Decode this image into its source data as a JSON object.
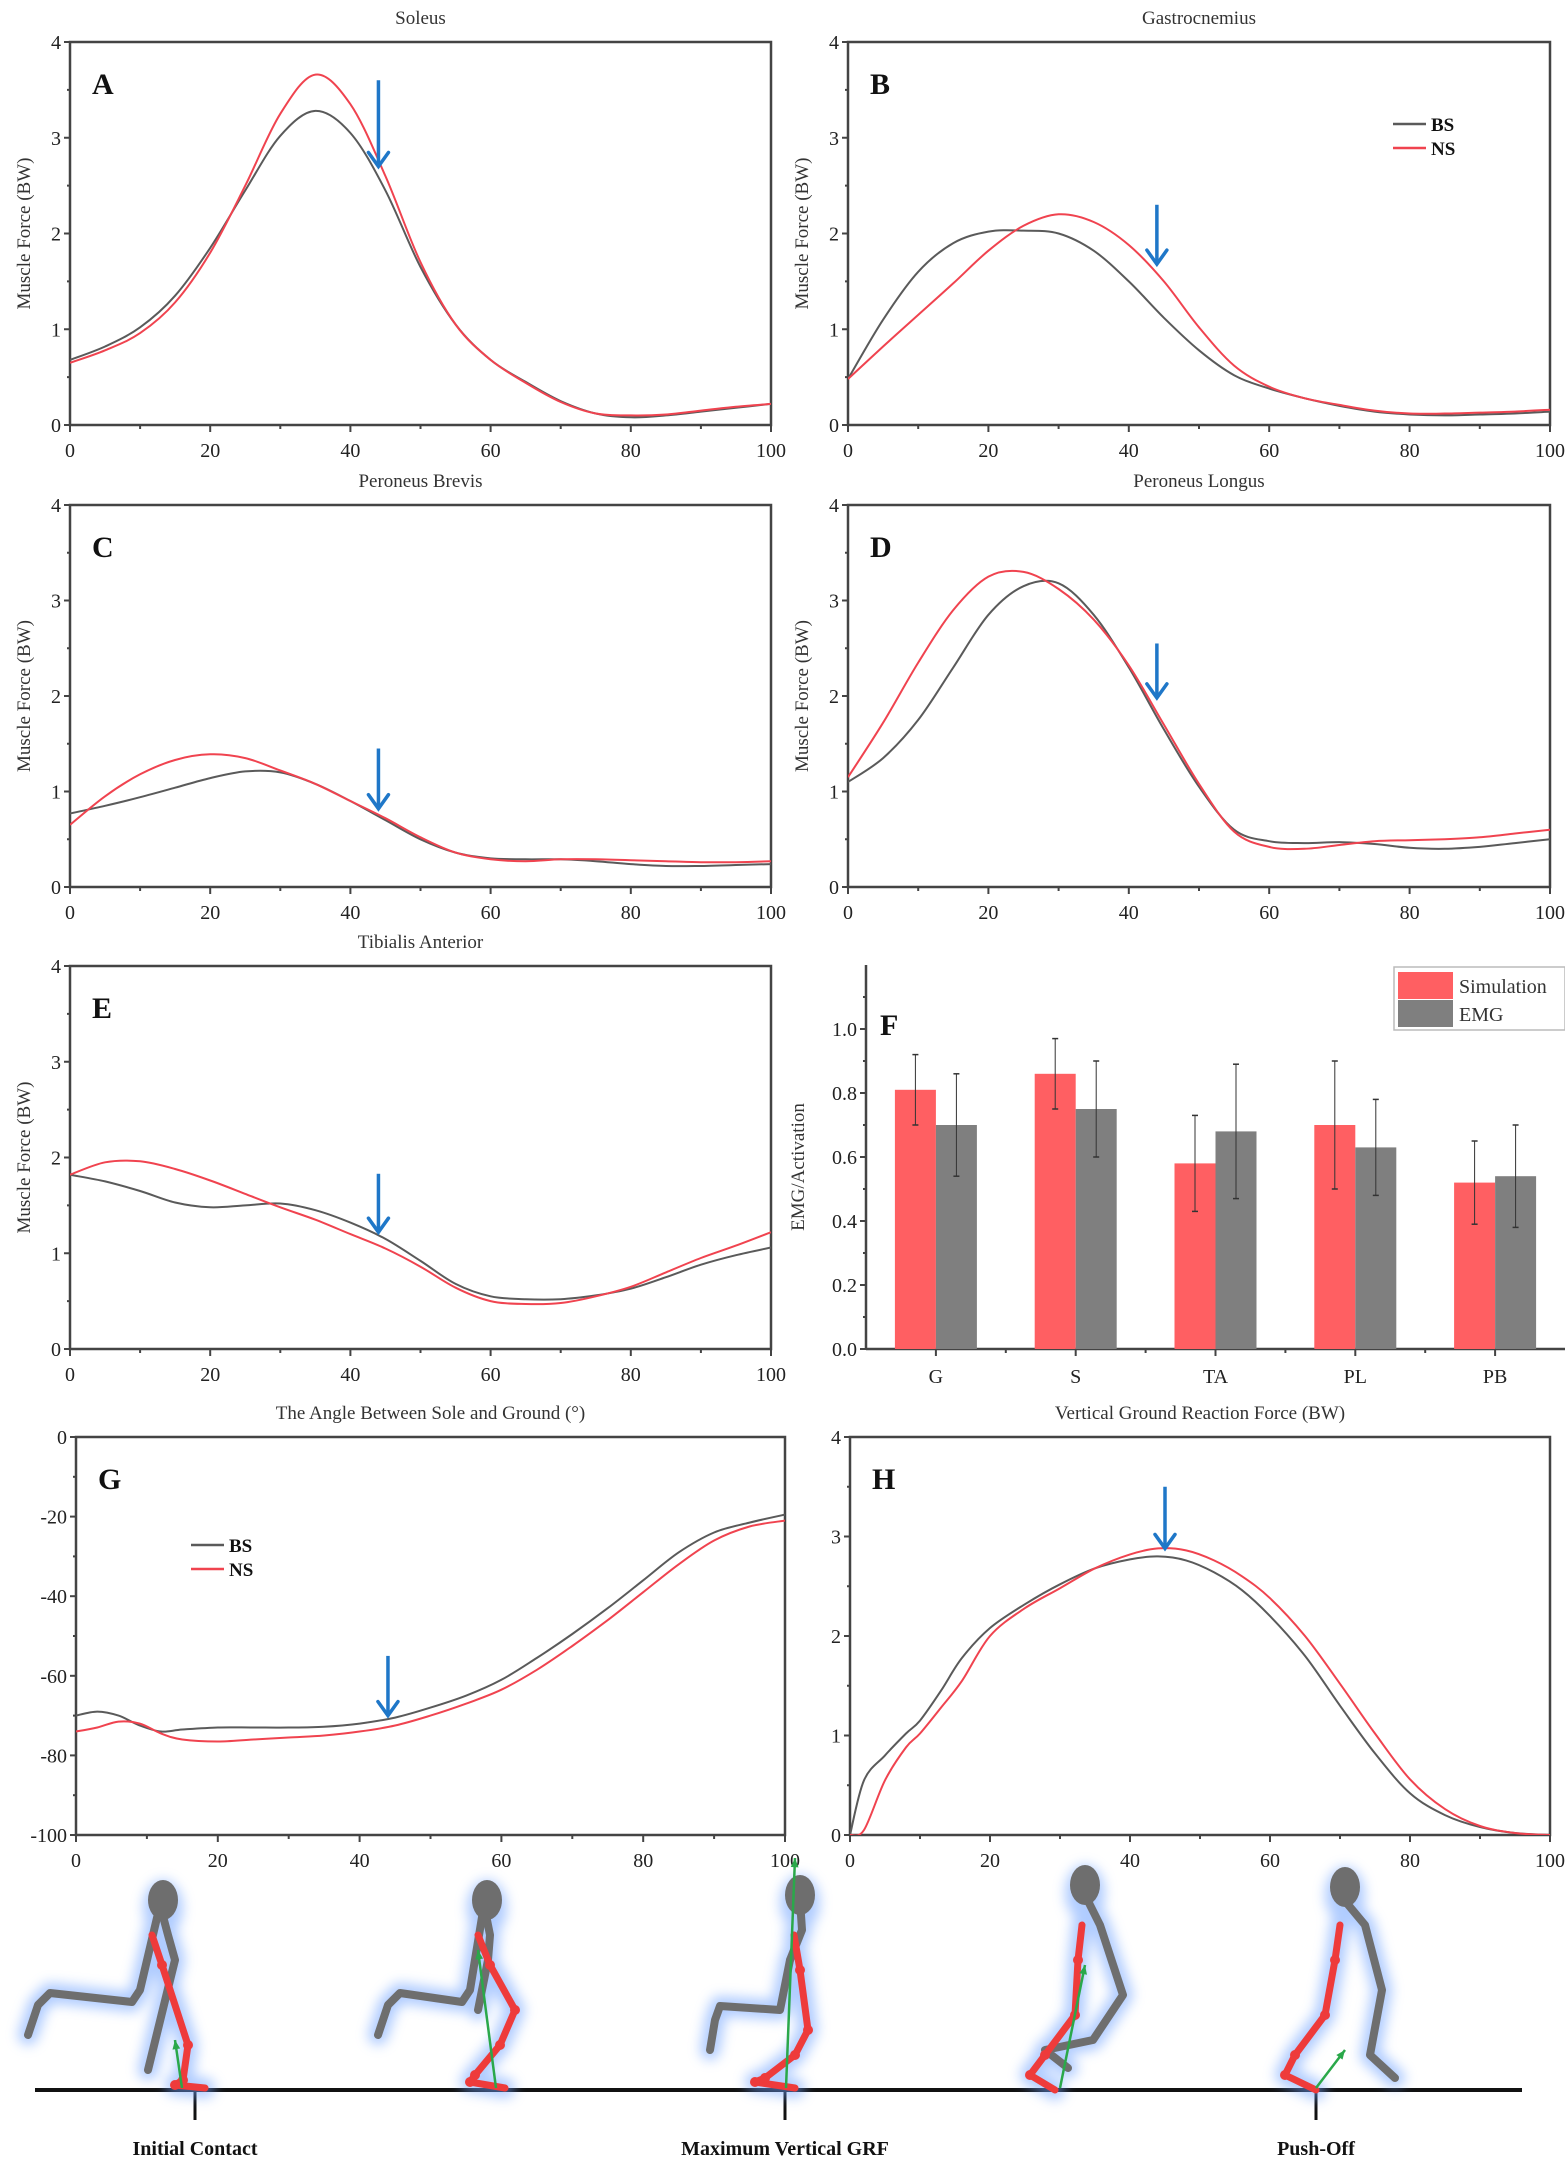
{
  "colors": {
    "BS": "#5a5a5a",
    "NS": "#f0434f",
    "arrow": "#1f77c8",
    "simulation": "#ff5f62",
    "emg": "#7f7f7f",
    "axis": "#444444",
    "skeleton_grey": "#6e6e6e",
    "skeleton_red": "#ee3b3b",
    "grf_vector": "#2aa84a",
    "glow": "#6fa3ff"
  },
  "legend": {
    "series": [
      "BS",
      "NS"
    ]
  },
  "phases": {
    "labels": [
      "Initial Contact",
      "Maximum Vertical GRF",
      "Push-Off"
    ]
  },
  "chart_data": [
    {
      "id": "A",
      "type": "line",
      "title": "Soleus",
      "letter": "A",
      "xlabel": "",
      "ylabel": "Muscle Force (BW)",
      "xlim": [
        0,
        100
      ],
      "ylim": [
        0,
        4
      ],
      "xticks": [
        0,
        20,
        40,
        60,
        80,
        100
      ],
      "yticks": [
        0,
        1,
        2,
        3,
        4
      ],
      "arrow_x": 44,
      "arrow_y_top": 3.6,
      "arrow_y_tip": 2.7,
      "series": [
        {
          "name": "BS",
          "x": [
            0,
            5,
            10,
            15,
            20,
            25,
            30,
            35,
            40,
            45,
            50,
            55,
            60,
            65,
            70,
            75,
            80,
            85,
            90,
            95,
            100
          ],
          "y": [
            0.68,
            0.82,
            1.02,
            1.35,
            1.85,
            2.45,
            3.02,
            3.28,
            3.05,
            2.45,
            1.65,
            1.05,
            0.68,
            0.45,
            0.25,
            0.12,
            0.08,
            0.1,
            0.14,
            0.18,
            0.22
          ]
        },
        {
          "name": "NS",
          "x": [
            0,
            5,
            10,
            15,
            20,
            25,
            30,
            35,
            40,
            45,
            50,
            55,
            60,
            65,
            70,
            75,
            80,
            85,
            90,
            95,
            100
          ],
          "y": [
            0.65,
            0.78,
            0.96,
            1.28,
            1.8,
            2.5,
            3.25,
            3.66,
            3.35,
            2.6,
            1.7,
            1.05,
            0.68,
            0.44,
            0.24,
            0.12,
            0.1,
            0.11,
            0.15,
            0.19,
            0.22
          ]
        }
      ]
    },
    {
      "id": "B",
      "type": "line",
      "title": "Gastrocnemius",
      "letter": "B",
      "xlabel": "",
      "ylabel": "Muscle Force (BW)",
      "xlim": [
        0,
        100
      ],
      "ylim": [
        0,
        4
      ],
      "xticks": [
        0,
        20,
        40,
        60,
        80,
        100
      ],
      "yticks": [
        0,
        1,
        2,
        3,
        4
      ],
      "legend": true,
      "arrow_x": 44,
      "arrow_y_top": 2.3,
      "arrow_y_tip": 1.68,
      "series": [
        {
          "name": "BS",
          "x": [
            0,
            5,
            10,
            15,
            20,
            25,
            30,
            35,
            40,
            45,
            50,
            55,
            60,
            65,
            70,
            75,
            80,
            85,
            90,
            95,
            100
          ],
          "y": [
            0.48,
            1.1,
            1.6,
            1.9,
            2.02,
            2.03,
            2.0,
            1.82,
            1.5,
            1.12,
            0.78,
            0.52,
            0.38,
            0.28,
            0.2,
            0.14,
            0.11,
            0.1,
            0.11,
            0.12,
            0.14
          ]
        },
        {
          "name": "NS",
          "x": [
            0,
            5,
            10,
            15,
            20,
            25,
            30,
            35,
            40,
            45,
            50,
            55,
            60,
            65,
            70,
            75,
            80,
            85,
            90,
            95,
            100
          ],
          "y": [
            0.48,
            0.82,
            1.15,
            1.48,
            1.82,
            2.08,
            2.2,
            2.12,
            1.88,
            1.5,
            1.02,
            0.62,
            0.4,
            0.28,
            0.21,
            0.15,
            0.12,
            0.12,
            0.13,
            0.14,
            0.16
          ]
        }
      ]
    },
    {
      "id": "C",
      "type": "line",
      "title": "Peroneus Brevis",
      "letter": "C",
      "xlabel": "",
      "ylabel": "Muscle Force (BW)",
      "xlim": [
        0,
        100
      ],
      "ylim": [
        0,
        4
      ],
      "xticks": [
        0,
        20,
        40,
        60,
        80,
        100
      ],
      "yticks": [
        0,
        1,
        2,
        3,
        4
      ],
      "arrow_x": 44,
      "arrow_y_top": 1.45,
      "arrow_y_tip": 0.82,
      "series": [
        {
          "name": "BS",
          "x": [
            0,
            5,
            10,
            15,
            20,
            25,
            30,
            35,
            40,
            45,
            50,
            55,
            60,
            65,
            70,
            75,
            80,
            85,
            90,
            95,
            100
          ],
          "y": [
            0.77,
            0.85,
            0.94,
            1.04,
            1.14,
            1.21,
            1.2,
            1.08,
            0.9,
            0.7,
            0.5,
            0.36,
            0.3,
            0.29,
            0.29,
            0.27,
            0.24,
            0.22,
            0.22,
            0.23,
            0.24
          ]
        },
        {
          "name": "NS",
          "x": [
            0,
            5,
            10,
            15,
            20,
            25,
            30,
            35,
            40,
            45,
            50,
            55,
            60,
            65,
            70,
            75,
            80,
            85,
            90,
            95,
            100
          ],
          "y": [
            0.65,
            0.95,
            1.18,
            1.33,
            1.39,
            1.35,
            1.22,
            1.08,
            0.9,
            0.72,
            0.52,
            0.36,
            0.29,
            0.27,
            0.29,
            0.29,
            0.28,
            0.27,
            0.26,
            0.26,
            0.27
          ]
        }
      ]
    },
    {
      "id": "D",
      "type": "line",
      "title": "Peroneus Longus",
      "letter": "D",
      "xlabel": "",
      "ylabel": "Muscle Force (BW)",
      "xlim": [
        0,
        100
      ],
      "ylim": [
        0,
        4
      ],
      "xticks": [
        0,
        20,
        40,
        60,
        80,
        100
      ],
      "yticks": [
        0,
        1,
        2,
        3,
        4
      ],
      "arrow_x": 44,
      "arrow_y_top": 2.55,
      "arrow_y_tip": 1.98,
      "series": [
        {
          "name": "BS",
          "x": [
            0,
            5,
            10,
            15,
            20,
            25,
            30,
            35,
            40,
            45,
            50,
            55,
            60,
            65,
            70,
            75,
            80,
            85,
            90,
            95,
            100
          ],
          "y": [
            1.1,
            1.35,
            1.75,
            2.3,
            2.85,
            3.15,
            3.18,
            2.85,
            2.3,
            1.65,
            1.05,
            0.6,
            0.48,
            0.46,
            0.47,
            0.45,
            0.41,
            0.4,
            0.42,
            0.46,
            0.5
          ]
        },
        {
          "name": "NS",
          "x": [
            0,
            5,
            10,
            15,
            20,
            25,
            30,
            35,
            40,
            45,
            50,
            55,
            60,
            65,
            70,
            75,
            80,
            85,
            90,
            95,
            100
          ],
          "y": [
            1.15,
            1.72,
            2.35,
            2.9,
            3.25,
            3.3,
            3.12,
            2.8,
            2.32,
            1.7,
            1.08,
            0.58,
            0.42,
            0.4,
            0.44,
            0.48,
            0.49,
            0.5,
            0.52,
            0.56,
            0.6
          ]
        }
      ]
    },
    {
      "id": "E",
      "type": "line",
      "title": "Tibialis Anterior",
      "letter": "E",
      "xlabel": "",
      "ylabel": "Muscle Force (BW)",
      "xlim": [
        0,
        100
      ],
      "ylim": [
        0,
        4
      ],
      "xticks": [
        0,
        20,
        40,
        60,
        80,
        100
      ],
      "yticks": [
        0,
        1,
        2,
        3,
        4
      ],
      "arrow_x": 44,
      "arrow_y_top": 1.83,
      "arrow_y_tip": 1.22,
      "series": [
        {
          "name": "BS",
          "x": [
            0,
            5,
            10,
            15,
            20,
            25,
            30,
            35,
            40,
            45,
            50,
            55,
            60,
            65,
            70,
            75,
            80,
            85,
            90,
            95,
            100
          ],
          "y": [
            1.82,
            1.75,
            1.65,
            1.53,
            1.48,
            1.5,
            1.52,
            1.45,
            1.32,
            1.15,
            0.92,
            0.68,
            0.55,
            0.52,
            0.52,
            0.56,
            0.63,
            0.75,
            0.88,
            0.98,
            1.06
          ]
        },
        {
          "name": "NS",
          "x": [
            0,
            5,
            10,
            15,
            20,
            25,
            30,
            35,
            40,
            45,
            50,
            55,
            60,
            65,
            70,
            75,
            80,
            85,
            90,
            95,
            100
          ],
          "y": [
            1.82,
            1.95,
            1.96,
            1.88,
            1.76,
            1.62,
            1.48,
            1.35,
            1.2,
            1.05,
            0.86,
            0.64,
            0.5,
            0.47,
            0.48,
            0.55,
            0.65,
            0.8,
            0.95,
            1.08,
            1.22
          ]
        }
      ]
    },
    {
      "id": "F",
      "type": "bar",
      "title": "",
      "letter": "F",
      "xlabel": "",
      "ylabel": "EMG/Activation",
      "categories": [
        "G",
        "S",
        "TA",
        "PL",
        "PB"
      ],
      "ylim": [
        0,
        1.2
      ],
      "yticks": [
        0.0,
        0.2,
        0.4,
        0.6,
        0.8,
        1.0
      ],
      "ytick_labels": [
        "0.0",
        "0.2",
        "0.4",
        "0.6",
        "0.8",
        "1.0"
      ],
      "legend_position": "top-right",
      "series": [
        {
          "name": "Simulation",
          "values": [
            0.81,
            0.86,
            0.58,
            0.7,
            0.52
          ],
          "errors": [
            0.11,
            0.11,
            0.15,
            0.2,
            0.13
          ]
        },
        {
          "name": "EMG",
          "values": [
            0.7,
            0.75,
            0.68,
            0.63,
            0.54
          ],
          "errors": [
            0.16,
            0.15,
            0.21,
            0.15,
            0.16
          ]
        }
      ]
    },
    {
      "id": "G",
      "type": "line",
      "title": "The Angle Between Sole and Ground (°)",
      "letter": "G",
      "xlabel": "",
      "ylabel": "",
      "xlim": [
        0,
        100
      ],
      "ylim": [
        -100,
        0
      ],
      "xticks": [
        0,
        20,
        40,
        60,
        80,
        100
      ],
      "yticks": [
        -100,
        -80,
        -60,
        -40,
        -20,
        0
      ],
      "legend": true,
      "arrow_x": 44,
      "arrow_y_top": -55,
      "arrow_y_tip": -70,
      "series": [
        {
          "name": "BS",
          "x": [
            0,
            3,
            6,
            9,
            12,
            15,
            20,
            25,
            30,
            35,
            40,
            45,
            50,
            55,
            60,
            65,
            70,
            75,
            80,
            85,
            90,
            95,
            100
          ],
          "y": [
            -70,
            -69,
            -70,
            -72.5,
            -74,
            -73.5,
            -73,
            -73,
            -73,
            -72.8,
            -72,
            -70.5,
            -68,
            -65,
            -61,
            -55.5,
            -49.5,
            -43,
            -36,
            -29,
            -24,
            -21.5,
            -19.5
          ]
        },
        {
          "name": "NS",
          "x": [
            0,
            3,
            6,
            9,
            12,
            15,
            20,
            25,
            30,
            35,
            40,
            45,
            50,
            55,
            60,
            65,
            70,
            75,
            80,
            85,
            90,
            95,
            100
          ],
          "y": [
            -74,
            -73,
            -71.5,
            -72,
            -74.5,
            -76,
            -76.5,
            -76,
            -75.5,
            -75,
            -74,
            -72.5,
            -70,
            -67,
            -63.5,
            -58.5,
            -52.5,
            -46,
            -39,
            -32,
            -26,
            -22.5,
            -21
          ]
        }
      ]
    },
    {
      "id": "H",
      "type": "line",
      "title": "Vertical Ground Reaction Force (BW)",
      "letter": "H",
      "xlabel": "",
      "ylabel": "",
      "xlim": [
        0,
        100
      ],
      "ylim": [
        0,
        4
      ],
      "xticks": [
        0,
        20,
        40,
        60,
        80,
        100
      ],
      "yticks": [
        0,
        1,
        2,
        3,
        4
      ],
      "arrow_x": 45,
      "arrow_y_top": 3.5,
      "arrow_y_tip": 2.88,
      "series": [
        {
          "name": "BS",
          "x": [
            0,
            2,
            5,
            8,
            10,
            13,
            16,
            20,
            25,
            30,
            35,
            40,
            44,
            48,
            52,
            56,
            60,
            65,
            70,
            75,
            80,
            85,
            90,
            95,
            100
          ],
          "y": [
            0.0,
            0.55,
            0.8,
            1.02,
            1.15,
            1.45,
            1.78,
            2.08,
            2.32,
            2.52,
            2.68,
            2.77,
            2.8,
            2.76,
            2.64,
            2.46,
            2.2,
            1.8,
            1.3,
            0.82,
            0.42,
            0.2,
            0.08,
            0.02,
            0.0
          ]
        },
        {
          "name": "NS",
          "x": [
            0,
            2,
            5,
            8,
            10,
            13,
            16,
            20,
            25,
            30,
            35,
            40,
            44,
            48,
            52,
            56,
            60,
            65,
            70,
            75,
            80,
            85,
            90,
            95,
            100
          ],
          "y": [
            0.0,
            0.05,
            0.55,
            0.88,
            1.02,
            1.28,
            1.55,
            2.0,
            2.28,
            2.48,
            2.68,
            2.82,
            2.88,
            2.86,
            2.76,
            2.6,
            2.38,
            2.0,
            1.52,
            1.02,
            0.56,
            0.26,
            0.09,
            0.02,
            0.0
          ]
        }
      ]
    }
  ]
}
